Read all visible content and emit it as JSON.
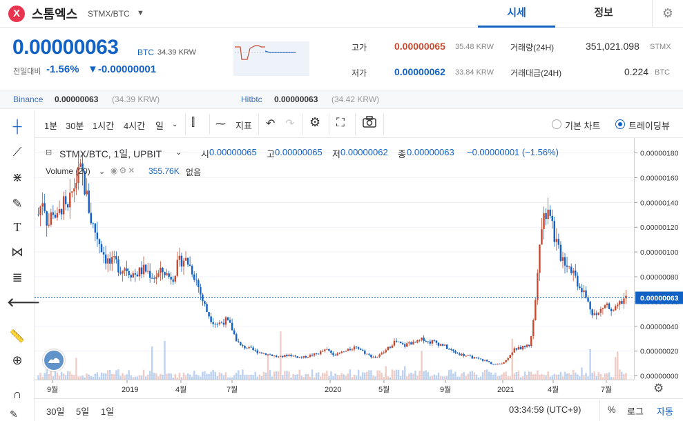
{
  "header": {
    "logo_glyph": "X",
    "coin_name": "스톰엑스",
    "pair": "STMX/BTC",
    "tab_price": "시세",
    "tab_info": "정보"
  },
  "summary": {
    "price": "0.00000063",
    "price_unit": "BTC",
    "price_krw": "34.39 KRW",
    "change_label": "전일대비",
    "change_pct": "-1.56%",
    "change_abs": "▼-0.00000001",
    "high_label": "고가",
    "high_value": "0.00000065",
    "high_krw": "35.48 KRW",
    "low_label": "저가",
    "low_value": "0.00000062",
    "low_krw": "33.84 KRW",
    "volume_label": "거래량(24H)",
    "volume_value": "351,021.098",
    "volume_unit": "STMX",
    "amount_label": "거래대금(24H)",
    "amount_value": "0.224",
    "amount_unit": "BTC"
  },
  "exchanges": [
    {
      "name": "Binance",
      "price": "0.00000063",
      "krw": "(34.39 KRW)"
    },
    {
      "name": "Hitbtc",
      "price": "0.00000063",
      "krw": "(34.42 KRW)"
    }
  ],
  "toolbar": {
    "intervals": [
      "1분",
      "30분",
      "1시간",
      "4시간",
      "일"
    ],
    "indicator_label": "지표",
    "basic_chart": "기본 차트",
    "tradingview": "트레이딩뷰"
  },
  "legend": {
    "title": "STMX/BTC, 1일, UPBIT",
    "open_label": "시",
    "open": "0.00000065",
    "high_label": "고",
    "high": "0.00000065",
    "low_label": "저",
    "low": "0.00000062",
    "close_label": "종",
    "close": "0.00000063",
    "change": "−0.00000001 (−1.56%)",
    "volume_title": "Volume (20)",
    "volume_value": "355.76K",
    "volume_na": "없음"
  },
  "colors": {
    "up": "#c84a31",
    "down": "#1261c4",
    "accent": "#1261c4"
  },
  "bottom": {
    "ranges": [
      "30일",
      "5일",
      "1일"
    ],
    "clock": "03:34:59 (UTC+9)",
    "pct": "%",
    "log": "로그",
    "auto": "자동"
  },
  "chart_data": {
    "type": "candlestick",
    "price_ticks": [
      "0.00000000",
      "0.00000020",
      "0.00000040",
      "0.00000060",
      "0.00000080",
      "0.00000100",
      "0.00000120",
      "0.00000140",
      "0.00000160",
      "0.00000180"
    ],
    "last_price_label": "0.00000063",
    "last_price": 6.3e-07,
    "ylim": [
      -3e-08,
      1.92e-06
    ],
    "time_ticks": [
      "9월",
      "2019",
      "4월",
      "7월",
      "2020",
      "5월",
      "9월",
      "2021",
      "4월",
      "7월"
    ],
    "series_close": [
      1.3,
      1.45,
      1.2,
      1.35,
      1.25,
      1.4,
      1.3,
      1.48,
      1.6,
      1.65,
      1.45,
      1.25,
      1.15,
      1.05,
      0.95,
      0.9,
      0.92,
      0.86,
      0.88,
      0.84,
      0.82,
      0.84,
      0.86,
      0.83,
      0.8,
      0.82,
      0.85,
      0.8,
      0.81,
      0.9,
      0.95,
      0.92,
      0.85,
      0.75,
      0.62,
      0.52,
      0.45,
      0.42,
      0.43,
      0.45,
      0.4,
      0.3,
      0.24,
      0.23,
      0.22,
      0.2,
      0.19,
      0.18,
      0.17,
      0.16,
      0.15,
      0.16,
      0.17,
      0.16,
      0.15,
      0.15,
      0.16,
      0.17,
      0.18,
      0.2,
      0.21,
      0.18,
      0.17,
      0.19,
      0.2,
      0.22,
      0.24,
      0.21,
      0.18,
      0.16,
      0.15,
      0.17,
      0.2,
      0.24,
      0.28,
      0.26,
      0.24,
      0.27,
      0.26,
      0.28,
      0.3,
      0.27,
      0.28,
      0.26,
      0.25,
      0.22,
      0.2,
      0.18,
      0.17,
      0.16,
      0.15,
      0.14,
      0.13,
      0.12,
      0.1,
      0.09,
      0.1,
      0.12,
      0.18,
      0.22,
      0.22,
      0.24,
      0.25,
      0.5,
      1.1,
      1.3,
      1.4,
      1.15,
      1.0,
      0.95,
      0.9,
      0.85,
      0.75,
      0.7,
      0.6,
      0.52,
      0.48,
      0.55,
      0.58,
      0.5,
      0.54,
      0.6,
      0.63
    ]
  }
}
